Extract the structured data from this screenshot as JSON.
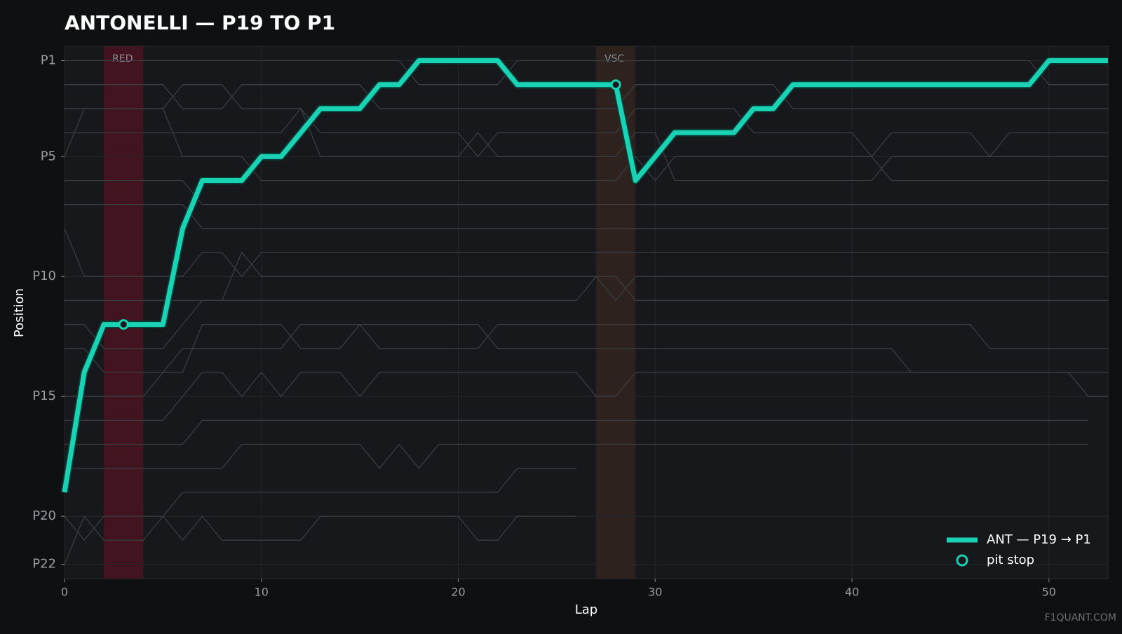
{
  "chart_data": {
    "type": "line",
    "title": "ANTONELLI — P19 TO P1",
    "x_label": "Lap",
    "y_label": "Position",
    "watermark": "F1QUANT.COM",
    "xlim": [
      0,
      53
    ],
    "ylim": [
      22.6,
      0.4
    ],
    "xticks": [
      0,
      10,
      20,
      30,
      40,
      50
    ],
    "yticks": [
      {
        "value": 1,
        "label": "P1"
      },
      {
        "value": 5,
        "label": "P5"
      },
      {
        "value": 10,
        "label": "P10"
      },
      {
        "value": 15,
        "label": "P15"
      },
      {
        "value": 20,
        "label": "P20"
      },
      {
        "value": 22,
        "label": "P22"
      }
    ],
    "grid": true,
    "legend": "lower right",
    "x": [
      0,
      1,
      2,
      3,
      4,
      5,
      6,
      7,
      8,
      9,
      10,
      11,
      12,
      13,
      14,
      15,
      16,
      17,
      18,
      19,
      20,
      21,
      22,
      23,
      24,
      25,
      26,
      27,
      28,
      29,
      30,
      31,
      32,
      33,
      34,
      35,
      36,
      37,
      38,
      39,
      40,
      41,
      42,
      43,
      44,
      45,
      46,
      47,
      48,
      49,
      50,
      51,
      52,
      53
    ],
    "series": [
      {
        "name": "ANT — P19 → P1",
        "color": "#19d3b4",
        "values": [
          19,
          14,
          12,
          12,
          12,
          12,
          8,
          6,
          6,
          6,
          5,
          5,
          4,
          3,
          3,
          3,
          2,
          2,
          1,
          1,
          1,
          1,
          1,
          2,
          2,
          2,
          2,
          2,
          2,
          6,
          5,
          4,
          4,
          4,
          4,
          3,
          3,
          2,
          2,
          2,
          2,
          2,
          2,
          2,
          2,
          2,
          2,
          2,
          2,
          2,
          1,
          1,
          1,
          1
        ]
      }
    ],
    "pit_stops": {
      "name": "pit stop",
      "color": "#19d3b4",
      "x": [
        3,
        28
      ],
      "values": [
        12,
        2
      ]
    },
    "bands": [
      {
        "label": "RED",
        "from": 2,
        "to": 4,
        "color": "#4a1420"
      },
      {
        "label": "VSC",
        "from": 27,
        "to": 29,
        "color": "#33241f"
      }
    ],
    "background_color": "#3a3d42",
    "background_series": [
      {
        "values": [
          1,
          1,
          1,
          1,
          1,
          1,
          1,
          1,
          1,
          1,
          1,
          1,
          1,
          1,
          1,
          1,
          1,
          1,
          2,
          2,
          2,
          2,
          2,
          1,
          1,
          1,
          1,
          1,
          1,
          1,
          1,
          1,
          1,
          1,
          1,
          1,
          1,
          1,
          1,
          1,
          1,
          1,
          1,
          1,
          1,
          1,
          1,
          1,
          1,
          1,
          2,
          2,
          2,
          2
        ]
      },
      {
        "values": [
          2,
          2,
          2,
          2,
          2,
          2,
          3,
          3,
          3,
          2,
          2,
          2,
          2,
          2,
          2,
          2,
          3,
          3,
          3,
          3,
          3,
          3,
          3,
          3,
          3,
          3,
          3,
          3,
          3,
          2,
          2,
          2,
          2,
          2,
          2,
          2,
          2,
          3,
          3,
          3,
          3,
          3,
          3,
          3,
          3,
          3,
          3,
          3,
          3,
          3,
          3,
          3,
          3,
          3
        ]
      },
      {
        "values": [
          3,
          3,
          3,
          3,
          3,
          3,
          2,
          2,
          2,
          3,
          3,
          3,
          3,
          4,
          4,
          4,
          4,
          4,
          4,
          4,
          4,
          5,
          4,
          4,
          4,
          4,
          4,
          4,
          4,
          3,
          3,
          3,
          3,
          3,
          3,
          4,
          4,
          4,
          4,
          4,
          4,
          5,
          4,
          4,
          4,
          4,
          4,
          5,
          4,
          4,
          4,
          4,
          4,
          4
        ]
      },
      {
        "values": [
          4,
          4,
          4,
          4,
          4,
          4,
          4,
          4,
          4,
          4,
          4,
          4,
          3,
          5,
          5,
          5,
          5,
          5,
          5,
          5,
          5,
          4,
          5,
          5,
          5,
          5,
          5,
          5,
          5,
          4,
          4,
          6,
          6,
          6,
          6,
          6,
          6,
          6,
          6,
          6,
          6,
          6,
          5,
          5,
          5,
          5,
          5,
          5,
          5,
          5,
          5,
          5,
          5,
          5
        ]
      },
      {
        "values": [
          5,
          3,
          3,
          3,
          3,
          3,
          5,
          5,
          5,
          5,
          6,
          6,
          6,
          6,
          6,
          6,
          6,
          6,
          6,
          6,
          6,
          6,
          6,
          6,
          6,
          6,
          6,
          6,
          6,
          5,
          6,
          5,
          5,
          5,
          5,
          5,
          5,
          5,
          5,
          5,
          5,
          5,
          6,
          6,
          6,
          6,
          6,
          6,
          6,
          6,
          6,
          6,
          6,
          6
        ]
      },
      {
        "values": [
          6,
          6,
          6,
          6,
          6,
          6,
          6,
          7,
          7,
          7,
          7,
          7,
          7,
          7,
          7,
          7,
          7,
          7,
          7,
          7,
          7,
          7,
          7,
          7,
          7,
          7,
          7,
          7,
          7,
          7,
          7,
          7,
          7,
          7,
          7,
          7,
          7,
          7,
          7,
          7,
          7,
          7,
          7,
          7,
          7,
          7,
          7,
          7,
          7,
          7,
          7,
          7,
          7,
          7
        ]
      },
      {
        "values": [
          7,
          7,
          7,
          7,
          7,
          7,
          7,
          8,
          8,
          8,
          8,
          8,
          8,
          8,
          8,
          8,
          8,
          8,
          8,
          8,
          8,
          8,
          8,
          8,
          8,
          8,
          8,
          8,
          8,
          8,
          8,
          8,
          8,
          8,
          8,
          8,
          8,
          8,
          8,
          8,
          8,
          8,
          8,
          8,
          8,
          8,
          8,
          8,
          8,
          8,
          8,
          8,
          8,
          8
        ]
      },
      {
        "values": [
          8,
          10,
          10,
          10,
          10,
          10,
          10,
          9,
          9,
          10,
          9,
          9,
          9,
          9,
          9,
          9,
          9,
          9,
          9,
          9,
          9,
          9,
          9,
          9,
          9,
          9,
          9,
          9,
          9,
          9,
          9,
          9,
          9,
          9,
          9,
          9,
          9,
          9,
          9,
          9,
          9,
          9,
          9,
          9,
          9,
          9,
          9,
          9,
          9,
          9,
          9,
          9,
          9,
          9
        ]
      },
      {
        "values": [
          11,
          11,
          11,
          11,
          11,
          11,
          11,
          11,
          11,
          9,
          10,
          10,
          10,
          10,
          10,
          10,
          10,
          10,
          10,
          10,
          10,
          10,
          10,
          10,
          10,
          10,
          10,
          10,
          11,
          10,
          10,
          10,
          10,
          10,
          10,
          10,
          10,
          10,
          10,
          10,
          10,
          10,
          10,
          10,
          10,
          10,
          10,
          10,
          10,
          10,
          10,
          10,
          10,
          10
        ]
      },
      {
        "values": [
          12,
          12,
          13,
          13,
          13,
          13,
          12,
          11,
          11,
          11,
          11,
          11,
          11,
          11,
          11,
          11,
          11,
          11,
          11,
          11,
          11,
          11,
          11,
          11,
          11,
          11,
          11,
          10,
          10,
          11,
          11,
          11,
          11,
          11,
          11,
          11,
          11,
          11,
          11,
          11,
          11,
          11,
          11,
          11,
          11,
          11,
          11,
          11,
          11,
          11,
          11,
          11,
          11,
          11
        ]
      },
      {
        "values": [
          13,
          13,
          14,
          14,
          14,
          14,
          14,
          12,
          12,
          12,
          12,
          12,
          13,
          13,
          13,
          12,
          13,
          13,
          13,
          13,
          13,
          13,
          12,
          12,
          12,
          12,
          12,
          12,
          12,
          12,
          12,
          12,
          12,
          12,
          12,
          12,
          12,
          12,
          12,
          12,
          12,
          12,
          12,
          12,
          12,
          12,
          12,
          13,
          13,
          13,
          13,
          13,
          13,
          13
        ]
      },
      {
        "values": [
          15,
          15,
          15,
          15,
          15,
          14,
          13,
          13,
          13,
          13,
          13,
          13,
          12,
          12,
          12,
          12,
          12,
          12,
          12,
          12,
          12,
          12,
          13,
          13,
          13,
          13,
          13,
          13,
          13,
          13,
          13,
          13,
          13,
          13,
          13,
          13,
          13,
          13,
          13,
          13,
          13,
          13,
          13,
          14,
          14,
          14,
          14,
          14,
          14,
          14,
          14,
          14,
          15,
          15
        ]
      },
      {
        "values": [
          16,
          16,
          16,
          16,
          16,
          16,
          15,
          14,
          14,
          15,
          14,
          15,
          14,
          14,
          14,
          15,
          14,
          14,
          14,
          14,
          14,
          14,
          14,
          14,
          14,
          14,
          14,
          15,
          15,
          14,
          14,
          14,
          14,
          14,
          14,
          14,
          14,
          14,
          14,
          14,
          14,
          14,
          14,
          14,
          14,
          14,
          14,
          14,
          14,
          14,
          14,
          14,
          14,
          14
        ]
      },
      {
        "values": [
          17,
          17,
          17,
          17,
          17,
          17,
          17,
          16,
          16,
          16,
          16,
          16,
          16,
          16,
          16,
          16,
          16,
          16,
          16,
          16,
          16,
          16,
          16,
          16,
          16,
          16,
          16,
          16,
          16,
          16,
          16,
          16,
          16,
          16,
          16,
          16,
          16,
          16,
          16,
          16,
          16,
          16,
          16,
          16,
          16,
          16,
          16,
          16,
          16,
          16,
          16,
          16,
          16,
          null
        ]
      },
      {
        "values": [
          18,
          18,
          18,
          18,
          18,
          18,
          18,
          18,
          18,
          17,
          17,
          17,
          17,
          17,
          17,
          17,
          18,
          17,
          18,
          17,
          17,
          17,
          17,
          17,
          17,
          17,
          17,
          17,
          17,
          17,
          17,
          17,
          17,
          17,
          17,
          17,
          17,
          17,
          17,
          17,
          17,
          17,
          17,
          17,
          17,
          17,
          17,
          17,
          17,
          17,
          17,
          17,
          17,
          null
        ]
      },
      {
        "values": [
          20,
          21,
          20,
          20,
          20,
          20,
          19,
          19,
          19,
          19,
          19,
          19,
          19,
          19,
          19,
          19,
          19,
          19,
          19,
          19,
          19,
          19,
          19,
          18,
          18,
          18,
          18,
          null,
          null,
          null,
          null,
          null,
          null,
          null,
          null,
          null,
          null,
          null,
          null,
          null,
          null,
          null,
          null,
          null,
          null,
          null,
          null,
          null,
          null,
          null,
          null,
          null,
          null,
          null
        ]
      },
      {
        "values": [
          22,
          20,
          21,
          21,
          21,
          20,
          21,
          20,
          21,
          21,
          21,
          21,
          21,
          20,
          20,
          20,
          20,
          20,
          20,
          20,
          20,
          21,
          21,
          20,
          20,
          20,
          20,
          null,
          null,
          null,
          null,
          null,
          null,
          null,
          null,
          null,
          null,
          null,
          null,
          null,
          null,
          null,
          null,
          null,
          null,
          null,
          null,
          null,
          null,
          null,
          null,
          null,
          null,
          null
        ]
      }
    ]
  }
}
